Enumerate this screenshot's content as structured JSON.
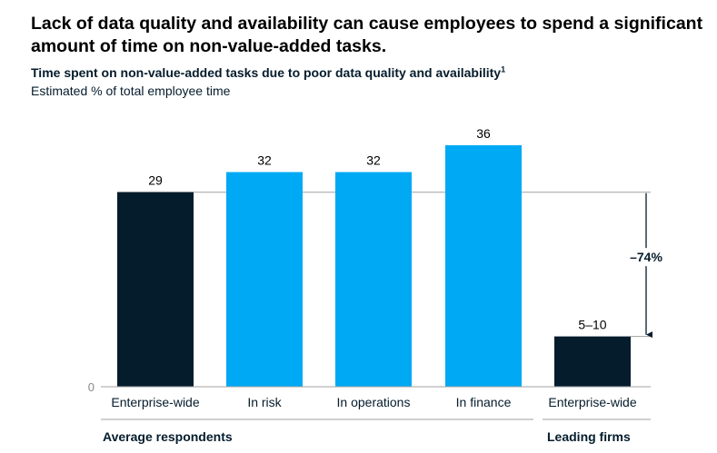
{
  "title": "Lack of data quality and availability can cause employees to spend a significant amount of time on non-value-added tasks.",
  "subtitle": "Time spent on non-value-added tasks due to poor data quality and availability",
  "subtitle_footnote": "1",
  "unit_label": "Estimated % of total employee time",
  "colors": {
    "dark": "#051c2c",
    "accent": "#00a9f4",
    "line": "#a0a0a0"
  },
  "chart_data": {
    "type": "bar",
    "title": "Time spent on non-value-added tasks due to poor data quality and availability",
    "ylabel": "Estimated % of total employee time",
    "xlabel": "",
    "ylim": [
      0,
      36
    ],
    "y_tick_label": "0",
    "categories": [
      "Enterprise-wide",
      "In risk",
      "In operations",
      "In finance",
      "Enterprise-wide"
    ],
    "values": [
      29,
      32,
      32,
      36,
      7.5
    ],
    "value_labels": [
      "29",
      "32",
      "32",
      "36",
      "5–10"
    ],
    "bar_colors": [
      "dark",
      "accent",
      "accent",
      "accent",
      "dark"
    ],
    "groups": [
      {
        "label": "Average respondents",
        "categories": [
          0,
          1,
          2,
          3
        ]
      },
      {
        "label": "Leading firms",
        "categories": [
          4
        ]
      }
    ],
    "annotation": {
      "label": "–74%",
      "from_index": 0,
      "to_index": 4
    }
  }
}
